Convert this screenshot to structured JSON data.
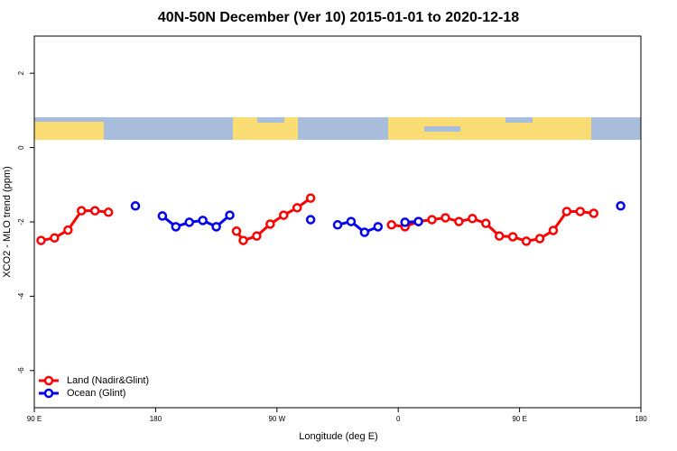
{
  "chart_data": {
    "type": "line",
    "title": "40N-50N December (Ver 10)   2015-01-01 to 2020-12-18",
    "x_label": "Longitude (deg E)",
    "y_label": "XCO2 - MLO trend (ppm)",
    "xlim": [
      90,
      540
    ],
    "ylim": [
      -7,
      3
    ],
    "xticks": [
      {
        "value": 90,
        "label": "90 E"
      },
      {
        "value": 180,
        "label": "180"
      },
      {
        "value": 270,
        "label": "90 W"
      },
      {
        "value": 360,
        "label": "0"
      },
      {
        "value": 450,
        "label": "90 E"
      },
      {
        "value": 540,
        "label": "180"
      }
    ],
    "yticks": [
      2,
      0,
      -2,
      -4,
      -6
    ],
    "legend": "bottom-left",
    "series": [
      {
        "name": "Land (Nadir&Glint)",
        "color": "#ff0000",
        "x": [
          95,
          105,
          115,
          125,
          135,
          145,
          null,
          240,
          245,
          255,
          265,
          275,
          285,
          295,
          null,
          355,
          365,
          375,
          385,
          395,
          405,
          415,
          425,
          435,
          445,
          455,
          465,
          475,
          485,
          495,
          505
        ],
        "values": [
          -2.5,
          -2.43,
          -2.22,
          -1.7,
          -1.7,
          -1.74,
          null,
          -2.25,
          -2.5,
          -2.38,
          -2.06,
          -1.82,
          -1.62,
          -1.36,
          null,
          -2.08,
          -2.13,
          -1.99,
          -1.94,
          -1.89,
          -1.99,
          -1.91,
          -2.04,
          -2.38,
          -2.4,
          -2.52,
          -2.45,
          -2.23,
          -1.72,
          -1.72,
          -1.77
        ]
      },
      {
        "name": "Ocean (Glint)",
        "color": "#0000ee",
        "x": [
          165,
          null,
          185,
          195,
          205,
          215,
          225,
          235,
          null,
          295,
          null,
          315,
          325,
          335,
          345,
          null,
          365,
          375,
          null,
          525
        ],
        "values": [
          -1.57,
          null,
          -1.84,
          -2.13,
          -2.01,
          -1.96,
          -2.13,
          -1.82,
          null,
          -1.94,
          null,
          -2.08,
          -1.99,
          -2.28,
          -2.13,
          null,
          -2.01,
          -1.99,
          null,
          -1.57
        ]
      }
    ]
  }
}
